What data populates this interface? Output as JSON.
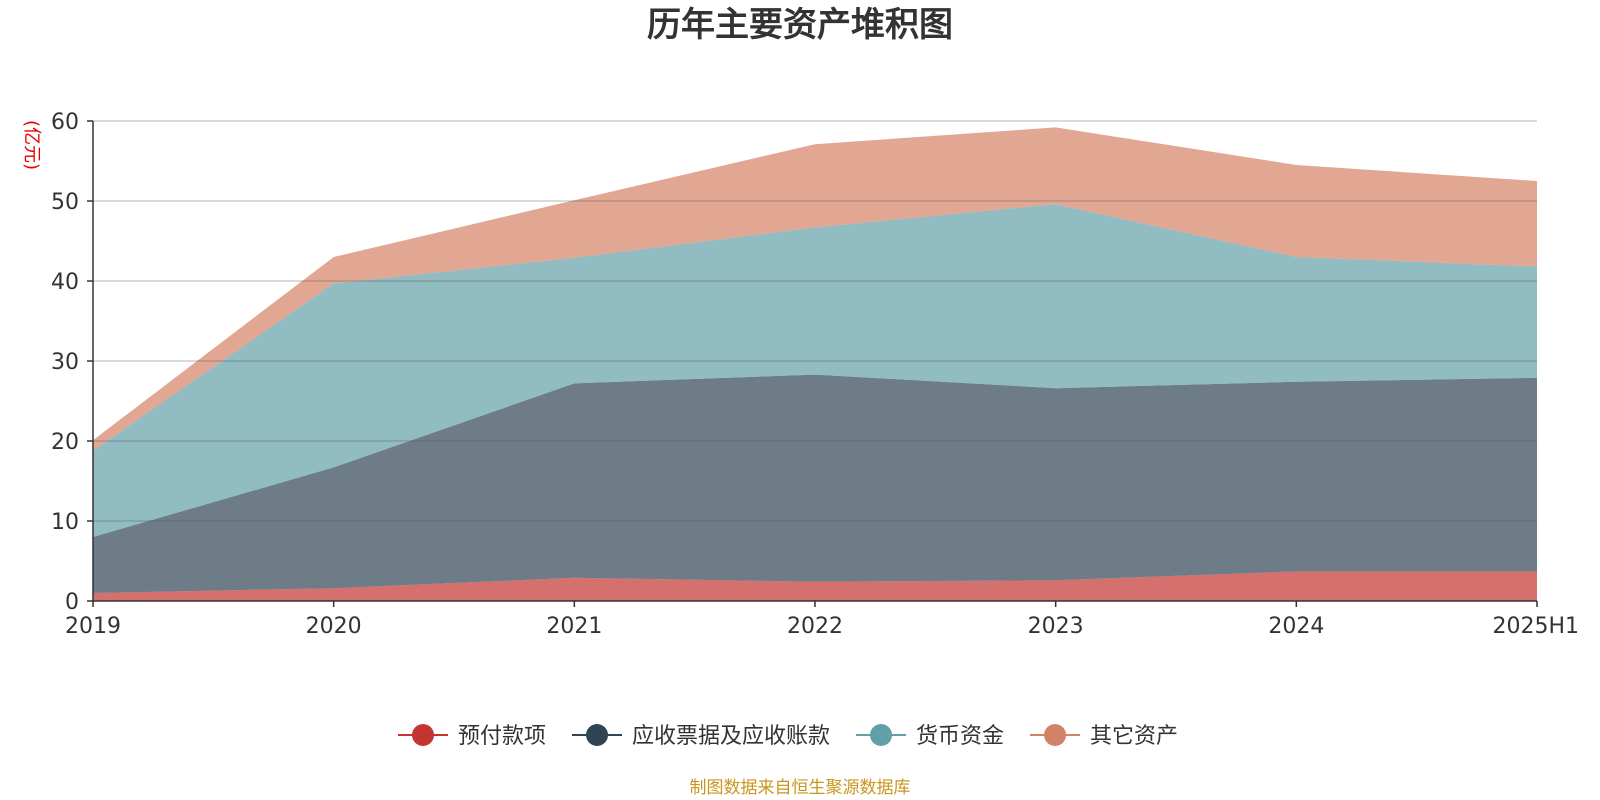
{
  "chart_data": {
    "type": "area",
    "stacked": true,
    "title": "历年主要资产堆积图",
    "unit_label": "(亿元)",
    "categories": [
      "2019",
      "2020",
      "2021",
      "2022",
      "2023",
      "2024",
      "2025H1"
    ],
    "ylim": [
      0,
      60
    ],
    "yticks": [
      "0",
      "10",
      "20",
      "30",
      "40",
      "50",
      "60"
    ],
    "grid": true,
    "legend_position": "bottom",
    "series": [
      {
        "name": "预付款项",
        "color": "#c23531",
        "values": [
          1.0,
          1.6,
          2.9,
          2.4,
          2.6,
          3.7,
          3.7
        ]
      },
      {
        "name": "应收票据及应收账款",
        "color": "#2f4554",
        "values": [
          7.0,
          15.1,
          24.3,
          25.9,
          24.0,
          23.7,
          24.2
        ]
      },
      {
        "name": "货币资金",
        "color": "#61a0a8",
        "values": [
          10.8,
          23.0,
          15.7,
          18.4,
          23.0,
          15.6,
          13.9
        ]
      },
      {
        "name": "其它资产",
        "color": "#d48265",
        "values": [
          1.3,
          3.3,
          7.2,
          10.4,
          9.6,
          11.5,
          10.7
        ]
      }
    ],
    "source": "制图数据来自恒生聚源数据库"
  }
}
